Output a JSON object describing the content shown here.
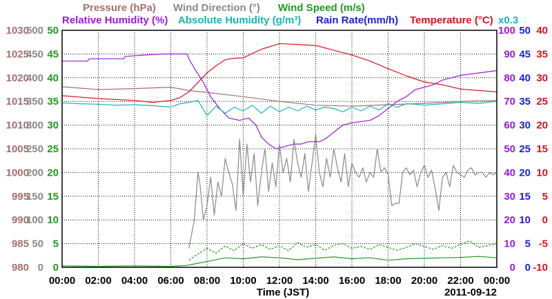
{
  "chart_data": {
    "type": "line",
    "date": "2011-09-12",
    "xlabel": "Time (JST)",
    "x_ticks": [
      "00:00",
      "02:00",
      "04:00",
      "06:00",
      "08:00",
      "10:00",
      "12:00",
      "14:00",
      "16:00",
      "18:00",
      "20:00",
      "22:00",
      "00:00"
    ],
    "x_range_hours": [
      0,
      24
    ],
    "grid": true,
    "legend": {
      "pressure": "Pressure (hPa)",
      "wind_direction": "Wind Direction (°)",
      "wind_speed": "Wind Speed (m/s)",
      "relative_humidity": "Relative Humidity (%)",
      "absolute_humidity": "Absolute Humidity (g/m³)",
      "rain_rate": "Rain Rate(mm/h)",
      "temperature": "Temperature (°C)",
      "scale_note": "x0.3"
    },
    "axes": {
      "pressure": {
        "range": [
          980,
          1030
        ],
        "ticks": [
          "1030",
          "1025",
          "1020",
          "1015",
          "1010",
          "1005",
          "1000",
          "995",
          "990",
          "985",
          "980"
        ],
        "color": "#a0706e"
      },
      "wind_direction": {
        "range": [
          0,
          500
        ],
        "ticks": [
          "500",
          "450",
          "400",
          "350",
          "300",
          "250",
          "200",
          "150",
          "100",
          "50",
          "0"
        ],
        "color": "#888888"
      },
      "wind_speed": {
        "range": [
          0,
          50
        ],
        "ticks": [
          "50",
          "45",
          "40",
          "35",
          "30",
          "25",
          "20",
          "15",
          "10",
          "5",
          "0"
        ],
        "color": "#1e9a1e"
      },
      "relative_humidity": {
        "range": [
          0,
          100
        ],
        "ticks": [
          "100",
          "90",
          "80",
          "70",
          "60",
          "50",
          "40",
          "30",
          "20",
          "10",
          "0"
        ],
        "color": "#9a19dc"
      },
      "rain_rate": {
        "range": [
          0,
          50
        ],
        "ticks": [
          "50",
          "45",
          "40",
          "35",
          "30",
          "25",
          "20",
          "15",
          "10",
          "5",
          "0"
        ],
        "color": "#1c1ce6"
      },
      "temperature": {
        "range": [
          -10,
          40
        ],
        "ticks": [
          "40",
          "35",
          "30",
          "25",
          "20",
          "15",
          "10",
          "5",
          "0",
          "-5",
          "-10"
        ],
        "color": "#e0101e"
      },
      "absolute_humidity_color": "#1ab3b3"
    },
    "series": [
      {
        "name": "Pressure (hPa)",
        "axis": "pressure",
        "color": "#a0706e",
        "x": [
          0,
          2,
          4,
          6,
          7,
          8,
          10,
          12,
          14,
          16,
          18,
          20,
          22,
          24
        ],
        "y": [
          1018.1,
          1017.5,
          1017.7,
          1018,
          1017.3,
          1016.9,
          1016,
          1015,
          1014.2,
          1014,
          1014.3,
          1014.6,
          1015,
          1015.2
        ]
      },
      {
        "name": "Temperature (°C)",
        "axis": "temperature",
        "color": "#e0101e",
        "x": [
          0,
          2,
          4,
          5,
          6,
          6.5,
          7,
          7.5,
          8,
          8.5,
          9,
          9.5,
          10,
          11,
          12,
          13,
          14,
          15,
          16,
          17,
          18,
          19,
          20,
          21,
          22,
          23,
          24
        ],
        "y": [
          26.2,
          25.6,
          25.2,
          24.8,
          25.2,
          25.8,
          27,
          29,
          31,
          32.5,
          33.8,
          34.1,
          34.2,
          36,
          37.2,
          37,
          36.8,
          35.8,
          34.8,
          33.5,
          31.9,
          30.4,
          29.1,
          28.5,
          27.6,
          27.3,
          27
        ]
      },
      {
        "name": "Relative Humidity (%)",
        "axis": "relative_humidity",
        "color": "#9a19dc",
        "x": [
          0,
          0.5,
          1.4,
          1.5,
          3.4,
          3.5,
          5.5,
          6.9,
          7,
          7.3,
          7.8,
          8.2,
          8.7,
          9.2,
          9.8,
          10.3,
          10.7,
          11,
          11.4,
          11.8,
          12.3,
          12.8,
          13.2,
          13.6,
          14.2,
          14.5,
          15,
          15.5,
          16,
          17,
          17.5,
          18,
          18.5,
          19,
          19.5,
          20.5,
          21,
          22,
          23,
          24
        ],
        "y": [
          87,
          87,
          87,
          88,
          88,
          89,
          90,
          90,
          88,
          84,
          78,
          72,
          67,
          63,
          62,
          63,
          60,
          55,
          52,
          50,
          51,
          52,
          52,
          53,
          53,
          54,
          57,
          60,
          61,
          62,
          64,
          67,
          70,
          72,
          75,
          77,
          79,
          81,
          82,
          83
        ]
      },
      {
        "name": "Absolute Humidity (g/m³)",
        "axis": "wind_direction",
        "color": "#1ab3b3",
        "x": [
          0,
          1,
          2,
          3,
          4,
          5,
          6,
          6.5,
          7,
          7.5,
          8,
          8.5,
          9,
          9.5,
          10,
          10.5,
          11,
          11.5,
          12,
          12.5,
          13,
          13.5,
          14,
          14.5,
          15,
          15.5,
          16,
          16.5,
          17,
          17.5,
          18,
          18.5,
          19,
          19.5,
          20,
          21,
          22,
          23,
          24
        ],
        "y": [
          347,
          345,
          344,
          342,
          343,
          341,
          338,
          345,
          348,
          352,
          320,
          340,
          325,
          338,
          330,
          342,
          325,
          340,
          328,
          338,
          330,
          340,
          332,
          338,
          335,
          328,
          338,
          330,
          340,
          332,
          345,
          338,
          345,
          344,
          342,
          345,
          348,
          346,
          350
        ]
      },
      {
        "name": "Wind Direction (°)",
        "axis": "wind_direction",
        "color": "#888888",
        "x": [
          7.0,
          7.2,
          7.3,
          7.5,
          7.6,
          7.8,
          8.0,
          8.2,
          8.4,
          8.6,
          8.8,
          9.0,
          9.2,
          9.4,
          9.6,
          9.8,
          10.0,
          10.2,
          10.4,
          10.6,
          10.8,
          11.0,
          11.2,
          11.4,
          11.6,
          11.8,
          12.0,
          12.2,
          12.4,
          12.6,
          12.8,
          13.0,
          13.2,
          13.4,
          13.6,
          13.8,
          14.0,
          14.2,
          14.4,
          14.6,
          14.8,
          15.0,
          15.2,
          15.4,
          15.6,
          15.8,
          16.0,
          16.2,
          16.4,
          16.6,
          16.8,
          17.0,
          17.2,
          17.4,
          17.6,
          17.8,
          18.0,
          18.2,
          18.4,
          18.6,
          18.8,
          19.0,
          19.2,
          19.4,
          19.6,
          19.8,
          20.0,
          20.2,
          20.4,
          20.6,
          20.8,
          21.0,
          21.2,
          21.4,
          21.6,
          21.8,
          22.0,
          22.2,
          22.4,
          22.6,
          22.8,
          23.0,
          23.2,
          23.4,
          23.6,
          23.8,
          24.0
        ],
        "y": [
          40,
          80,
          100,
          200,
          180,
          100,
          130,
          190,
          110,
          180,
          150,
          230,
          200,
          175,
          120,
          270,
          150,
          260,
          180,
          240,
          130,
          200,
          250,
          160,
          220,
          170,
          260,
          200,
          230,
          180,
          270,
          220,
          190,
          240,
          160,
          220,
          280,
          200,
          170,
          230,
          190,
          250,
          210,
          180,
          240,
          170,
          220,
          200,
          190,
          210,
          180,
          200,
          190,
          250,
          200,
          210,
          195,
          130,
          135,
          135,
          200,
          210,
          195,
          205,
          170,
          200,
          215,
          190,
          205,
          165,
          120,
          190,
          200,
          170,
          215,
          200,
          195,
          190,
          205,
          210,
          195,
          200,
          200,
          190,
          200,
          195,
          200
        ]
      },
      {
        "name": "Wind Speed (m/s)",
        "axis": "wind_speed",
        "color": "#1e9a1e",
        "x": [
          0,
          2,
          4,
          6,
          6.9,
          7,
          8,
          9,
          10,
          11,
          12,
          13,
          14,
          15,
          16,
          17,
          18,
          19,
          20,
          21,
          22,
          23,
          24
        ],
        "y": [
          0.3,
          0.2,
          0.3,
          0.2,
          0.4,
          0.5,
          1.2,
          2.0,
          1.8,
          2.2,
          2.0,
          1.6,
          1.9,
          2.2,
          1.8,
          2.0,
          1.5,
          1.8,
          1.9,
          2.0,
          2.1,
          2.3,
          2.0
        ]
      },
      {
        "name": "Wind Speed gust (m/s)",
        "axis": "wind_speed",
        "color": "#1e9a1e",
        "dashed": true,
        "x": [
          7,
          7.5,
          8,
          8.5,
          9,
          9.5,
          10,
          10.5,
          11,
          11.5,
          12,
          12.5,
          13,
          13.5,
          14,
          14.5,
          15,
          15.5,
          16,
          16.5,
          17,
          17.5,
          18,
          18.5,
          19,
          19.5,
          20,
          20.5,
          21,
          21.5,
          22,
          22.5,
          23,
          23.5,
          24
        ],
        "y": [
          1.5,
          2.8,
          4.0,
          3.0,
          4.5,
          3.5,
          5.0,
          4.0,
          4.8,
          3.8,
          4.6,
          3.5,
          5.2,
          4.2,
          4.8,
          3.6,
          4.6,
          5.0,
          4.0,
          4.4,
          3.8,
          4.8,
          4.2,
          3.6,
          4.2,
          5.0,
          4.4,
          3.8,
          4.6,
          4.0,
          4.8,
          5.6,
          4.2,
          4.6,
          5.0
        ]
      }
    ]
  }
}
